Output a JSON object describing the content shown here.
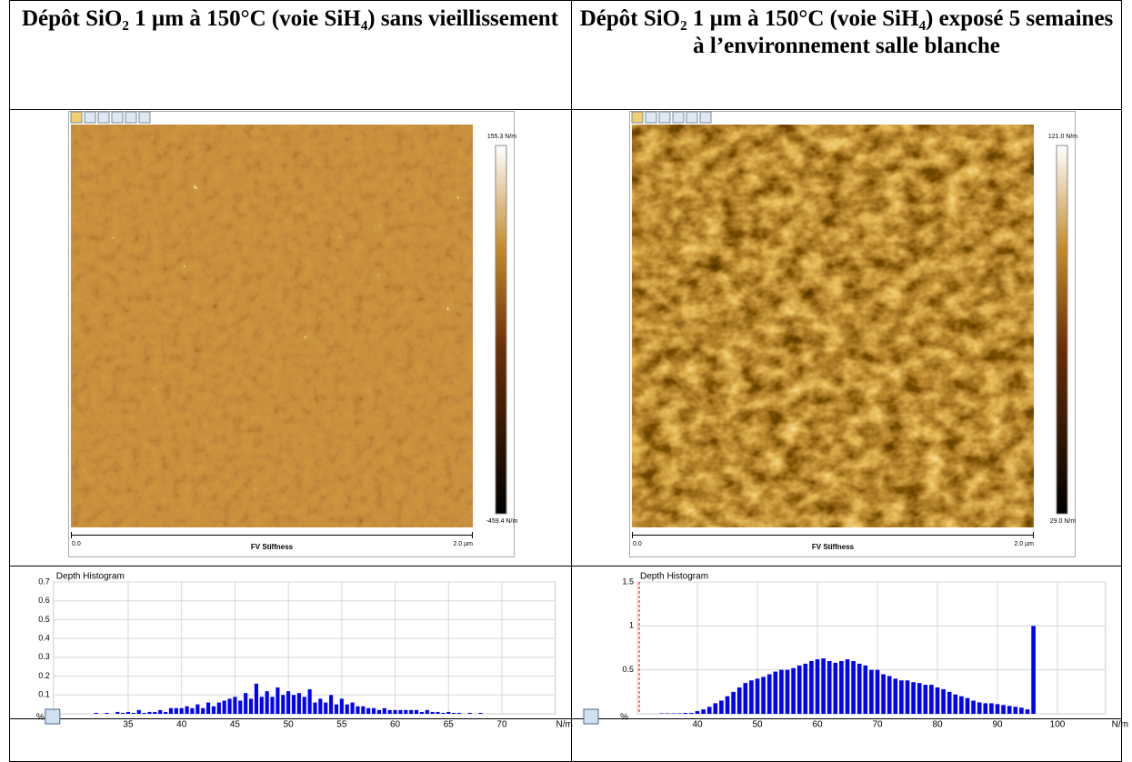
{
  "table": {
    "headers": [
      "Dépôt SiO₂ 1 µm à 150°C (voie SiH₄) sans vieillissement",
      "Dépôt SiO₂ 1 µm à 150°C (voie SiH₄) exposé 5 semaines à l’environnement salle blanche"
    ],
    "panels": [
      {
        "colorbar_max": "155.3 N/m",
        "colorbar_min": "-459.4 N/m",
        "x_start": "0.0",
        "x_label": "FV Stiffness",
        "x_end": "2.0 µm"
      },
      {
        "colorbar_max": "121.0 N/m",
        "colorbar_min": "29.0 N/m",
        "x_start": "0.0",
        "x_label": "FV Stiffness",
        "x_end": "2.0 µm"
      }
    ],
    "histograms": [
      {
        "type": "bar",
        "title": "Depth Histogram",
        "y_label": "%",
        "x_label": "N/m",
        "color": "#0000ff",
        "grid": true,
        "xlim": [
          28,
          75
        ],
        "ylim": [
          0,
          0.7
        ],
        "xticks": [
          35,
          40,
          45,
          50,
          55,
          60,
          65,
          70
        ],
        "yticks": [
          0.1,
          0.2,
          0.3,
          0.4,
          0.5,
          0.6,
          0.7
        ],
        "x": [
          32,
          32.5,
          33,
          33.5,
          34,
          34.5,
          35,
          35.5,
          36,
          36.5,
          37,
          37.5,
          38,
          38.5,
          39,
          39.5,
          40,
          40.5,
          41,
          41.5,
          42,
          42.5,
          43,
          43.5,
          44,
          44.5,
          45,
          45.5,
          46,
          46.5,
          47,
          47.5,
          48,
          48.5,
          49,
          49.5,
          50,
          50.5,
          51,
          51.5,
          52,
          52.5,
          53,
          53.5,
          54,
          54.5,
          55,
          55.5,
          56,
          56.5,
          57,
          57.5,
          58,
          58.5,
          59,
          59.5,
          60,
          60.5,
          61,
          61.5,
          62,
          62.5,
          63,
          63.5,
          64,
          64.5,
          65,
          65.5,
          66,
          66.5,
          67,
          67.5,
          68
        ],
        "values": [
          0.005,
          0,
          0.005,
          0,
          0.01,
          0.005,
          0.01,
          0.005,
          0.02,
          0.005,
          0.01,
          0.01,
          0.02,
          0.01,
          0.03,
          0.03,
          0.03,
          0.04,
          0.03,
          0.05,
          0.03,
          0.06,
          0.04,
          0.06,
          0.07,
          0.08,
          0.09,
          0.07,
          0.11,
          0.08,
          0.16,
          0.09,
          0.12,
          0.09,
          0.14,
          0.1,
          0.12,
          0.1,
          0.11,
          0.09,
          0.13,
          0.06,
          0.08,
          0.06,
          0.1,
          0.05,
          0.08,
          0.05,
          0.06,
          0.04,
          0.04,
          0.03,
          0.03,
          0.02,
          0.03,
          0.02,
          0.02,
          0.02,
          0.02,
          0.02,
          0.02,
          0.01,
          0.02,
          0.01,
          0.01,
          0.005,
          0.01,
          0.005,
          0.005,
          0,
          0.005,
          0,
          0.005
        ]
      },
      {
        "type": "bar",
        "title": "Depth Histogram",
        "y_label": "%",
        "x_label": "N/m",
        "color": "#0000ff",
        "grid": true,
        "reference_line": 30.3,
        "xlim": [
          30,
          108
        ],
        "ylim": [
          0,
          1.5
        ],
        "xticks": [
          40,
          50,
          60,
          70,
          80,
          90,
          100
        ],
        "yticks": [
          0.5,
          1,
          1.5
        ],
        "x": [
          34,
          35,
          36,
          37,
          38,
          39,
          40,
          41,
          42,
          43,
          44,
          45,
          46,
          47,
          48,
          49,
          50,
          51,
          52,
          53,
          54,
          55,
          56,
          57,
          58,
          59,
          60,
          61,
          62,
          63,
          64,
          65,
          66,
          67,
          68,
          69,
          70,
          71,
          72,
          73,
          74,
          75,
          76,
          77,
          78,
          79,
          80,
          81,
          82,
          83,
          84,
          85,
          86,
          87,
          88,
          89,
          90,
          91,
          92,
          93,
          94,
          95,
          96
        ],
        "values": [
          0.005,
          0.005,
          0.005,
          0.005,
          0.01,
          0.01,
          0.03,
          0.05,
          0.08,
          0.12,
          0.15,
          0.2,
          0.25,
          0.3,
          0.35,
          0.38,
          0.4,
          0.42,
          0.45,
          0.48,
          0.5,
          0.5,
          0.52,
          0.55,
          0.57,
          0.6,
          0.62,
          0.63,
          0.6,
          0.58,
          0.6,
          0.62,
          0.6,
          0.57,
          0.55,
          0.5,
          0.5,
          0.45,
          0.43,
          0.4,
          0.38,
          0.38,
          0.36,
          0.35,
          0.33,
          0.33,
          0.3,
          0.28,
          0.25,
          0.22,
          0.2,
          0.18,
          0.15,
          0.13,
          0.12,
          0.12,
          0.11,
          0.1,
          0.09,
          0.08,
          0.07,
          0.05,
          1
        ]
      }
    ]
  }
}
